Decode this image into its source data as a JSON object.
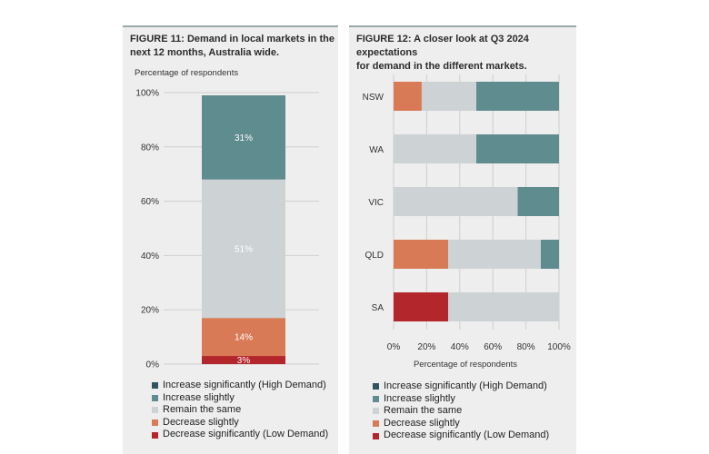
{
  "figure11": {
    "title": "FIGURE 11: Demand in local markets in the\nnext 12 months, Australia wide.",
    "ylabel": "Percentage of respondents"
  },
  "figure12": {
    "title": "FIGURE 12: A closer look at Q3 2024 expectations\nfor demand in the different markets.",
    "xlabel": "Percentage of respondents"
  },
  "legend": [
    {
      "label": "Increase significantly (High Demand)",
      "color": "#2f5560"
    },
    {
      "label": "Increase slightly",
      "color": "#5f8c8f"
    },
    {
      "label": "Remain the same",
      "color": "#cdd2d4"
    },
    {
      "label": "Decrease slightly",
      "color": "#d87a55"
    },
    {
      "label": "Decrease significantly (Low Demand)",
      "color": "#b3262c"
    }
  ],
  "chart_data": [
    {
      "type": "bar",
      "stacked": true,
      "orientation": "vertical",
      "title": "FIGURE 11: Demand in local markets in the next 12 months, Australia wide.",
      "ylabel": "Percentage of respondents",
      "ylim": [
        0,
        100
      ],
      "yticks": [
        "0%",
        "20%",
        "40%",
        "60%",
        "80%",
        "100%"
      ],
      "categories": [
        "Australia wide"
      ],
      "series": [
        {
          "name": "Decrease significantly (Low Demand)",
          "values": [
            3
          ],
          "label": "3%"
        },
        {
          "name": "Decrease slightly",
          "values": [
            14
          ],
          "label": "14%"
        },
        {
          "name": "Remain the same",
          "values": [
            51
          ],
          "label": "51%"
        },
        {
          "name": "Increase slightly",
          "values": [
            31
          ],
          "label": "31%"
        },
        {
          "name": "Increase significantly (High Demand)",
          "values": [
            0
          ],
          "label": ""
        }
      ],
      "grid": true,
      "legend_position": "bottom"
    },
    {
      "type": "bar",
      "stacked": true,
      "orientation": "horizontal",
      "title": "FIGURE 12: A closer look at Q3 2024 expectations for demand in the different markets.",
      "xlabel": "Percentage of respondents",
      "xlim": [
        0,
        100
      ],
      "xticks": [
        "0%",
        "20%",
        "40%",
        "60%",
        "80%",
        "100%"
      ],
      "categories": [
        "NSW",
        "WA",
        "VIC",
        "QLD",
        "SA"
      ],
      "series": [
        {
          "name": "Decrease significantly (Low Demand)",
          "values": [
            0,
            0,
            0,
            0,
            33
          ]
        },
        {
          "name": "Decrease slightly",
          "values": [
            17,
            0,
            0,
            33,
            0
          ]
        },
        {
          "name": "Remain the same",
          "values": [
            33,
            50,
            75,
            56,
            67
          ]
        },
        {
          "name": "Increase slightly",
          "values": [
            50,
            50,
            25,
            11,
            0
          ]
        },
        {
          "name": "Increase significantly (High Demand)",
          "values": [
            0,
            0,
            0,
            0,
            0
          ]
        }
      ],
      "grid": true,
      "legend_position": "bottom"
    }
  ]
}
